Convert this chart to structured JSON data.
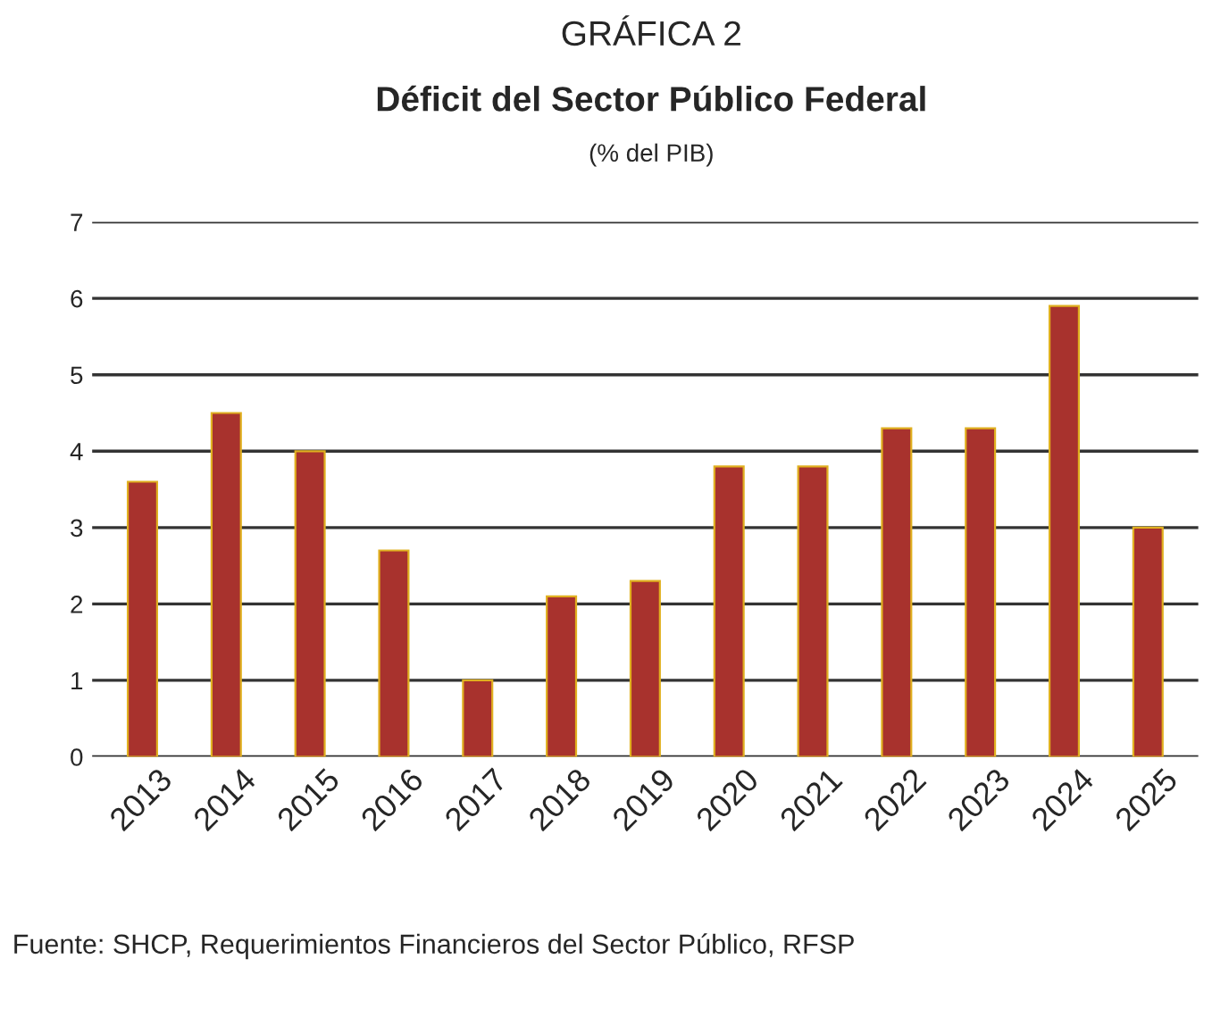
{
  "chart_data": {
    "type": "bar",
    "title": "GRÁFICA 2",
    "subtitle": "Déficit del Sector Público Federal",
    "ylabel": "(% del PIB)",
    "categories": [
      "2013",
      "2014",
      "2015",
      "2016",
      "2017",
      "2018",
      "2019",
      "2020",
      "2021",
      "2022",
      "2023",
      "2024",
      "2025"
    ],
    "values": [
      3.6,
      4.5,
      4.0,
      2.7,
      1.0,
      2.1,
      2.3,
      3.8,
      3.8,
      4.3,
      4.3,
      5.9,
      3.0
    ],
    "color": "#a8322d",
    "ylim": [
      0,
      7
    ],
    "yticks": [
      0,
      1,
      2,
      3,
      4,
      5,
      6,
      7
    ],
    "grid": "y",
    "annotations": [
      "Fuente: SHCP, Requerimientos Financieros del Sector Público, RFSP"
    ]
  }
}
